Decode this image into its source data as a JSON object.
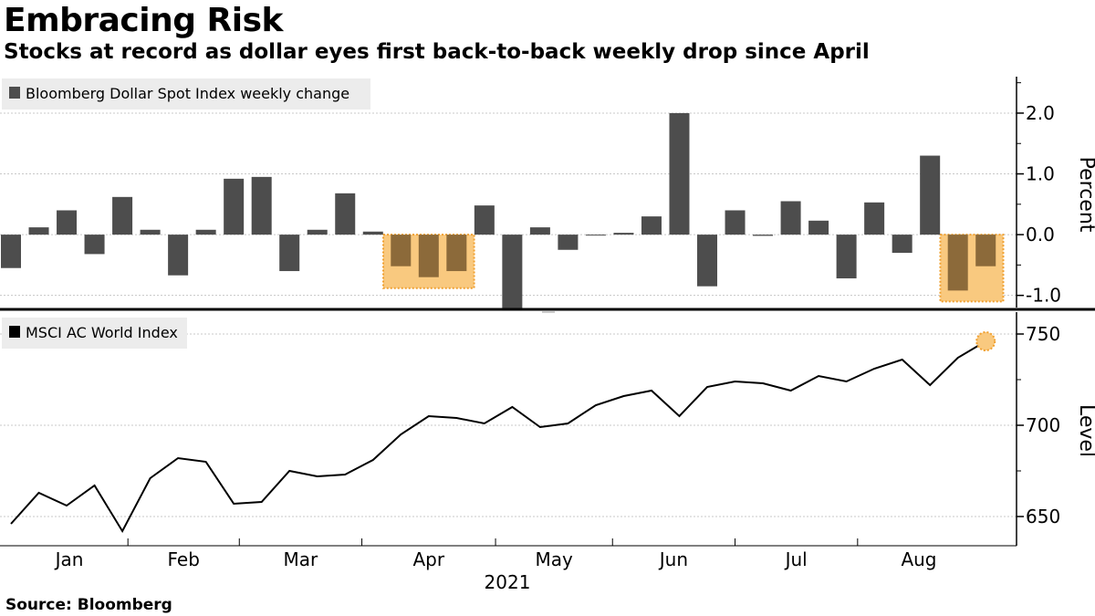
{
  "title": "Embracing Risk",
  "subtitle": "Stocks at record as dollar eyes first back-to-back weekly drop since April",
  "source": "Source: Bloomberg",
  "colors": {
    "bar": "#4d4d4d",
    "highlight_fill": "#f9c97f",
    "highlight_stroke": "#f0a030",
    "highlighted_bar": "#8c6a3a",
    "line": "#000000",
    "grid": "#c8c8c8",
    "legend_bg": "#ececec"
  },
  "chart_data": [
    {
      "type": "bar",
      "legend": "Bloomberg Dollar Spot Index weekly change",
      "ylabel": "Percent",
      "ylim": [
        -1.2,
        2.6
      ],
      "yticks": [
        2.0,
        1.0,
        0.0,
        -1.0
      ],
      "ytick_labels": [
        "2.0",
        "1.0",
        "0.0",
        "-1.0"
      ],
      "values": [
        -0.55,
        0.12,
        0.4,
        -0.32,
        0.62,
        0.08,
        -0.67,
        0.08,
        0.92,
        0.95,
        -0.6,
        0.08,
        0.68,
        0.05,
        -0.52,
        -0.7,
        -0.6,
        0.48,
        -1.22,
        0.12,
        -0.25,
        -0.01,
        0.03,
        0.3,
        2.0,
        -0.85,
        0.4,
        -0.02,
        0.55,
        0.23,
        -0.72,
        0.53,
        -0.3,
        1.3,
        -0.92,
        -0.52
      ],
      "highlighted_indices": [
        14,
        15,
        16,
        34,
        35
      ]
    },
    {
      "type": "line",
      "legend": "MSCI AC World Index",
      "ylabel": "Level",
      "ylim": [
        634,
        762
      ],
      "yticks": [
        750,
        700,
        650
      ],
      "ytick_labels": [
        "750",
        "700",
        "650"
      ],
      "values": [
        646,
        663,
        656,
        667,
        642,
        671,
        682,
        680,
        657,
        658,
        675,
        672,
        673,
        681,
        695,
        705,
        704,
        701,
        710,
        699,
        701,
        711,
        716,
        719,
        705,
        721,
        724,
        723,
        719,
        727,
        724,
        731,
        736,
        722,
        737,
        746
      ],
      "highlighted_point_index": 35
    }
  ],
  "x_axis": {
    "months": [
      "Jan",
      "Feb",
      "Mar",
      "Apr",
      "May",
      "Jun",
      "Jul",
      "Aug"
    ],
    "year": "2021"
  }
}
